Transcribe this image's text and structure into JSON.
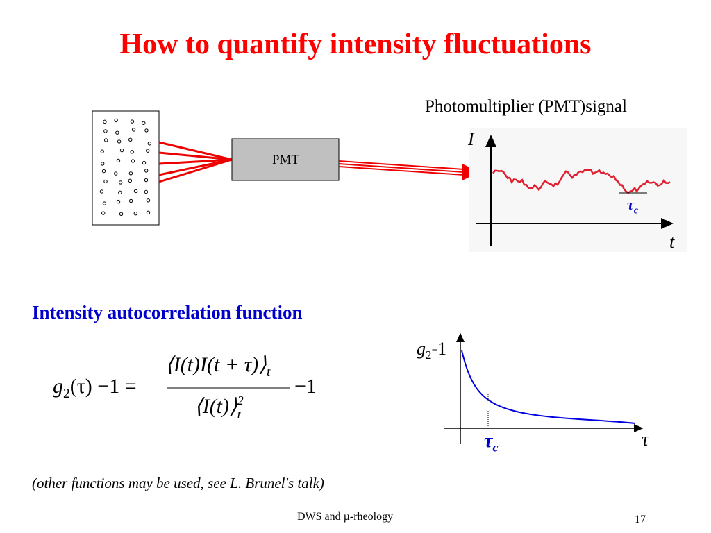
{
  "title": "How to quantify intensity fluctuations",
  "signal_panel": {
    "caption": "Photomultiplier (PMT)signal",
    "detector_label": "PMT",
    "y_axis_label": "I",
    "x_axis_label": "t",
    "tau_symbol": "τ",
    "tau_subscript": "c"
  },
  "section_heading": "Intensity autocorrelation function",
  "equation": {
    "lhs_symbol": "g",
    "lhs_subscript": "2",
    "lhs_rest": "(τ) −1 =",
    "numerator": "⟨I(t)I(t + τ)⟩",
    "numerator_subscript": "t",
    "denominator": "⟨I(t)⟩",
    "denominator_superscript": "2",
    "denominator_subscript": "t",
    "rhs": "−1"
  },
  "decay_plot": {
    "y_axis_symbol": "g",
    "y_axis_subscript": "2",
    "y_axis_rest": "-1",
    "x_axis_label": "τ",
    "marker_symbol": "τ",
    "marker_subscript": "c"
  },
  "note": "(other functions may be used, see L. Brunel's talk)",
  "footer": {
    "left": "DWS and µ-rheology",
    "page": "17"
  }
}
